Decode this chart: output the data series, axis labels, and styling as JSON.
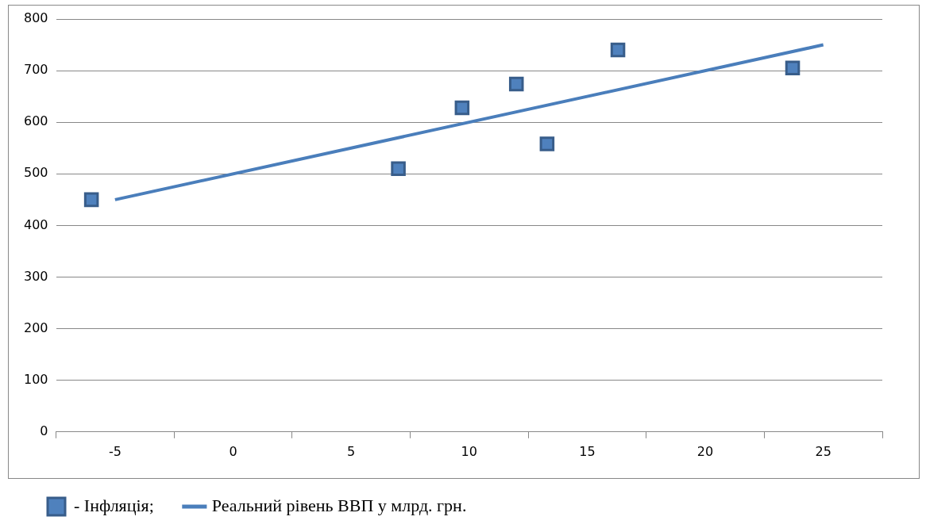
{
  "chart_data": {
    "type": "scatter",
    "xlim": [
      -7.5,
      27.5
    ],
    "xticks": [
      {
        "value": -7.5,
        "label": null
      },
      -5,
      {
        "value": -2.5,
        "label": null
      },
      0,
      {
        "value": 2.5,
        "label": null
      },
      5,
      {
        "value": 7.5,
        "label": null
      },
      10,
      {
        "value": 12.5,
        "label": null
      },
      15,
      {
        "value": 17.5,
        "label": null
      },
      20,
      {
        "value": 22.5,
        "label": null
      },
      25,
      {
        "value": 27.5,
        "label": null
      }
    ],
    "ylim": [
      0,
      800
    ],
    "yticks": [
      0,
      100,
      200,
      300,
      400,
      500,
      600,
      700,
      800
    ],
    "grid": "y",
    "legend": "bottom",
    "series": [
      {
        "name": "- Інфляція;",
        "marker": "square",
        "color": "#4f81bd",
        "x": [
          -6,
          7,
          9.7,
          12,
          13.3,
          16.3,
          23.7
        ],
        "values": [
          450,
          510,
          628,
          674,
          558,
          740,
          705
        ]
      },
      {
        "name": "Реальний рівень ВВП у млрд. грн.",
        "type": "line",
        "marker": "none",
        "color": "#4a7ebb",
        "x": [
          -5,
          25
        ],
        "values": [
          450,
          750
        ]
      }
    ]
  }
}
